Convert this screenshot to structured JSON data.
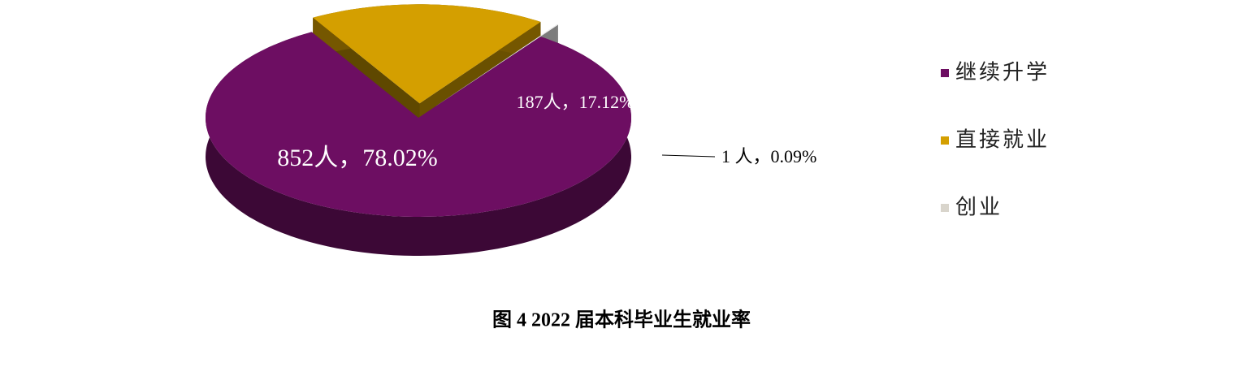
{
  "chart_data": {
    "type": "pie",
    "title": "图 4 2022 届本科毕业生就业率",
    "categories": [
      "继续升学",
      "直接就业",
      "创业"
    ],
    "values": [
      852,
      187,
      1
    ],
    "value_labels": [
      "852人，78.02%",
      "187人，17.12%",
      "1 人，0.09%"
    ],
    "colors": [
      "#6d0e62",
      "#d49f00",
      "#f8f8f8"
    ],
    "legend": "right"
  }
}
